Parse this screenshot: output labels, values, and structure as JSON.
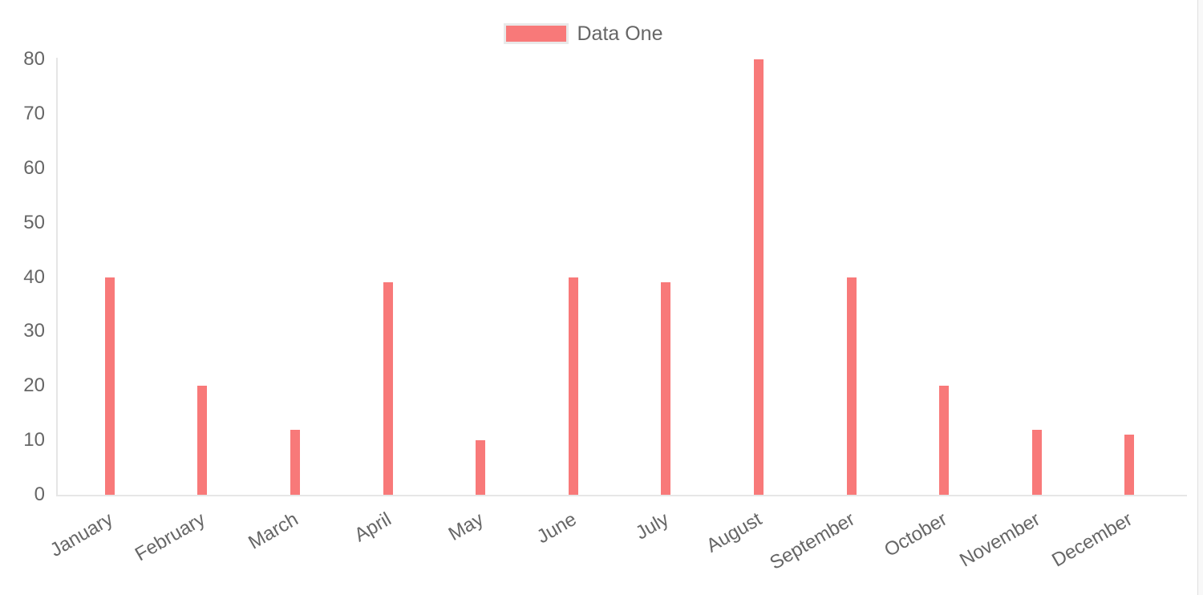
{
  "legend": {
    "label": "Data One"
  },
  "chart_data": {
    "type": "bar",
    "title": "",
    "categories": [
      "January",
      "February",
      "March",
      "April",
      "May",
      "June",
      "July",
      "August",
      "September",
      "October",
      "November",
      "December"
    ],
    "series": [
      {
        "name": "Data One",
        "color": "#f87979",
        "values": [
          40,
          20,
          12,
          39,
          10,
          40,
          39,
          80,
          40,
          20,
          12,
          11
        ]
      }
    ],
    "xlabel": "",
    "ylabel": "",
    "ylim": [
      0,
      80
    ],
    "yticks": [
      0,
      10,
      20,
      30,
      40,
      50,
      60,
      70,
      80
    ],
    "grid": false,
    "legend_position": "top-center",
    "x_label_rotation_deg": -30,
    "colors": {
      "bar": "#f87979",
      "axis_line": "#e6e6e6",
      "tick_label": "#666666",
      "legend_text": "#666666",
      "legend_swatch_border": "#e9e9e9",
      "background": "#ffffff"
    }
  }
}
